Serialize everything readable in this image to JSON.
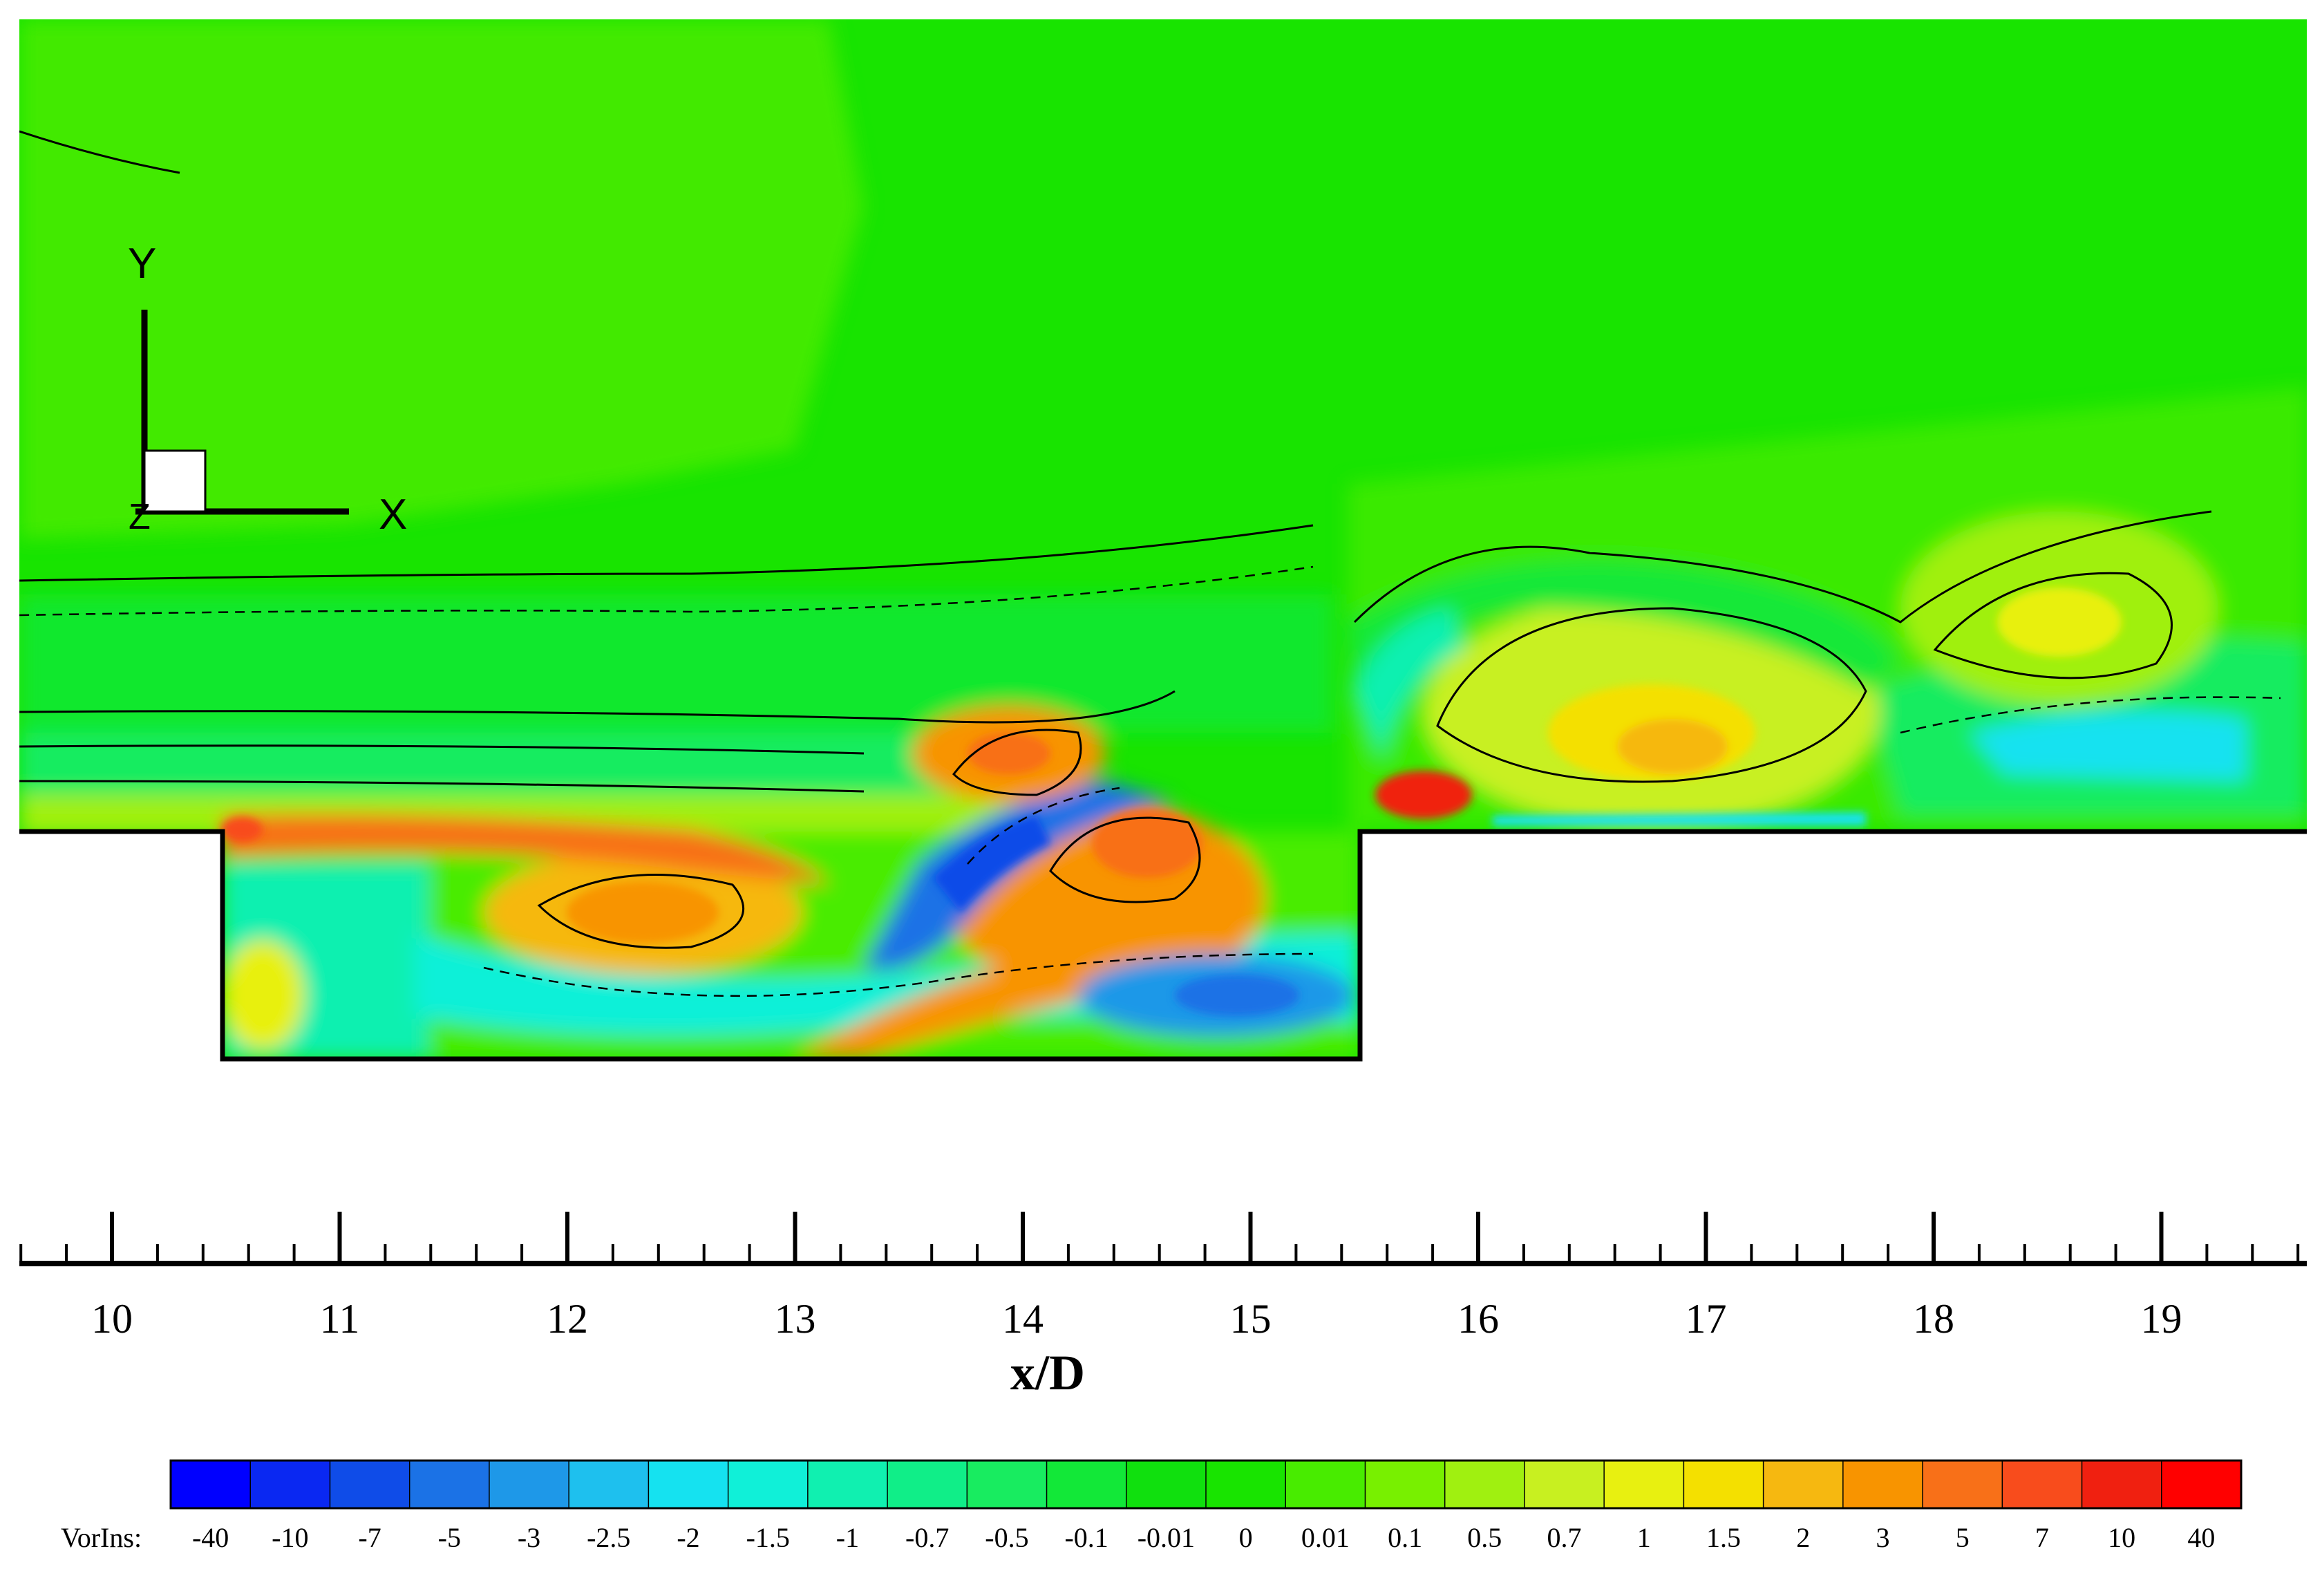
{
  "chart_data": {
    "type": "heatmap",
    "subtype": "filled-contour",
    "xlabel": "x/D",
    "x_ticks": [
      10,
      11,
      12,
      13,
      14,
      15,
      16,
      17,
      18,
      19
    ],
    "xlim": [
      9.6,
      19.67
    ],
    "minor_tick_step": 0.2,
    "grid": false,
    "legend_position": "bottom",
    "axis_triad": {
      "y": "Y",
      "x": "X",
      "z": "Z"
    },
    "geometry": {
      "channel_floor_x": [
        9.6,
        19.67
      ],
      "cavity_x": [
        10.5,
        15.5
      ]
    },
    "colorbar": {
      "variable": "VorIns:",
      "levels": [
        "-40",
        "-10",
        "-7",
        "-5",
        "-3",
        "-2.5",
        "-2",
        "-1.5",
        "-1",
        "-0.7",
        "-0.5",
        "-0.1",
        "-0.01",
        "0",
        "0.01",
        "0.1",
        "0.5",
        "0.7",
        "1",
        "1.5",
        "2",
        "3",
        "5",
        "7",
        "10",
        "40"
      ],
      "colors": [
        "#0000ff",
        "#0a28f2",
        "#0f4ce8",
        "#1b72e6",
        "#1e98e8",
        "#1ec0ee",
        "#15e2f0",
        "#10f0d8",
        "#10f0b0",
        "#10ee88",
        "#18ec60",
        "#12e838",
        "#10e00e",
        "#18e400",
        "#48ec00",
        "#78f000",
        "#a0f010",
        "#c8f020",
        "#e8f010",
        "#f4e000",
        "#f6b810",
        "#f89400",
        "#f87018",
        "#f84c1c",
        "#f02010",
        "#ff0000"
      ]
    },
    "vortex_cores": [
      {
        "x": 10.8,
        "value_class": "5"
      },
      {
        "x": 12.4,
        "value_class": "3"
      },
      {
        "x": 13.7,
        "value_class": "-10"
      },
      {
        "x": 13.95,
        "value_class": "5"
      },
      {
        "x": 14.6,
        "value_class": "7"
      },
      {
        "x": 14.7,
        "value_class": "-5"
      },
      {
        "x": 15.9,
        "value_class": "10"
      },
      {
        "x": 16.7,
        "value_class": "1.5"
      },
      {
        "x": 18.6,
        "value_class": "1"
      },
      {
        "x": 18.9,
        "value_class": "-1.5"
      }
    ]
  }
}
